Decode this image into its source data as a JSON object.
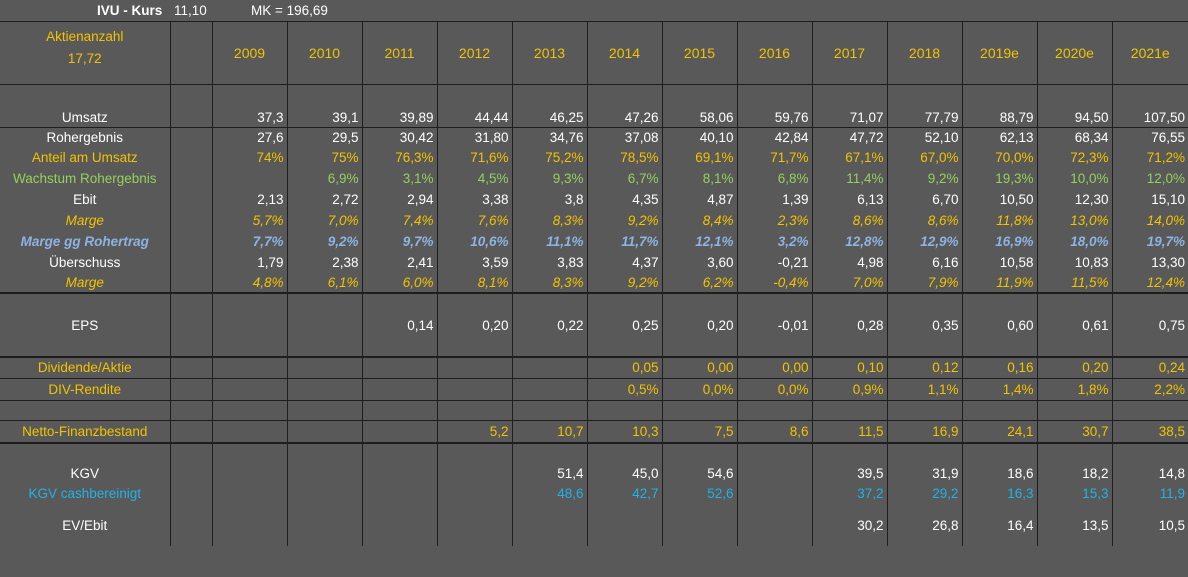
{
  "header": {
    "title": "IVU - Kurs",
    "kurs": "11,10",
    "mk": "MK = 196,69"
  },
  "aktienanzahl": {
    "label": "Aktienanzahl",
    "value": "17,72"
  },
  "years": [
    "2009",
    "2010",
    "2011",
    "2012",
    "2013",
    "2014",
    "2015",
    "2016",
    "2017",
    "2018",
    "2019e",
    "2020e",
    "2021e"
  ],
  "rows": {
    "umsatz": {
      "label": "Umsatz",
      "values": [
        "37,3",
        "39,1",
        "39,89",
        "44,44",
        "46,25",
        "47,26",
        "58,06",
        "59,76",
        "71,07",
        "77,79",
        "88,79",
        "94,50",
        "107,50"
      ]
    },
    "rohergebnis": {
      "label": "Rohergebnis",
      "values": [
        "27,6",
        "29,5",
        "30,42",
        "31,80",
        "34,76",
        "37,08",
        "40,10",
        "42,84",
        "47,72",
        "52,10",
        "62,13",
        "68,34",
        "76,55"
      ]
    },
    "anteil": {
      "label": "Anteil am Umsatz",
      "values": [
        "74%",
        "75%",
        "76,3%",
        "71,6%",
        "75,2%",
        "78,5%",
        "69,1%",
        "71,7%",
        "67,1%",
        "67,0%",
        "70,0%",
        "72,3%",
        "71,2%"
      ]
    },
    "wachstum": {
      "label": "Wachstum Rohergebnis",
      "values": [
        "",
        "6,9%",
        "3,1%",
        "4,5%",
        "9,3%",
        "6,7%",
        "8,1%",
        "6,8%",
        "11,4%",
        "9,2%",
        "19,3%",
        "10,0%",
        "12,0%"
      ]
    },
    "ebit": {
      "label": "Ebit",
      "values": [
        "2,13",
        "2,72",
        "2,94",
        "3,38",
        "3,8",
        "4,35",
        "4,87",
        "1,39",
        "6,13",
        "6,70",
        "10,50",
        "12,30",
        "15,10"
      ]
    },
    "marge1": {
      "label": "Marge",
      "values": [
        "5,7%",
        "7,0%",
        "7,4%",
        "7,6%",
        "8,3%",
        "9,2%",
        "8,4%",
        "2,3%",
        "8,6%",
        "8,6%",
        "11,8%",
        "13,0%",
        "14,0%"
      ]
    },
    "margeroh": {
      "label": "Marge gg Rohertrag",
      "values": [
        "7,7%",
        "9,2%",
        "9,7%",
        "10,6%",
        "11,1%",
        "11,7%",
        "12,1%",
        "3,2%",
        "12,8%",
        "12,9%",
        "16,9%",
        "18,0%",
        "19,7%"
      ]
    },
    "ueberschuss": {
      "label": "Überschuss",
      "values": [
        "1,79",
        "2,38",
        "2,41",
        "3,59",
        "3,83",
        "4,37",
        "3,60",
        "-0,21",
        "4,98",
        "6,16",
        "10,58",
        "10,83",
        "13,30"
      ]
    },
    "marge2": {
      "label": "Marge",
      "values": [
        "4,8%",
        "6,1%",
        "6,0%",
        "8,1%",
        "8,3%",
        "9,2%",
        "6,2%",
        "-0,4%",
        "7,0%",
        "7,9%",
        "11,9%",
        "11,5%",
        "12,4%"
      ]
    },
    "eps": {
      "label": "EPS",
      "values": [
        "",
        "",
        "0,14",
        "0,20",
        "0,22",
        "0,25",
        "0,20",
        "-0,01",
        "0,28",
        "0,35",
        "0,60",
        "0,61",
        "0,75"
      ]
    },
    "dividende": {
      "label": "Dividende/Aktie",
      "values": [
        "",
        "",
        "",
        "",
        "",
        "0,05",
        "0,00",
        "0,00",
        "0,10",
        "0,12",
        "0,16",
        "0,20",
        "0,24"
      ]
    },
    "divrendite": {
      "label": "DIV-Rendite",
      "values": [
        "",
        "",
        "",
        "",
        "",
        "0,5%",
        "0,0%",
        "0,0%",
        "0,9%",
        "1,1%",
        "1,4%",
        "1,8%",
        "2,2%"
      ]
    },
    "netto": {
      "label": "Netto-Finanzbestand",
      "values": [
        "",
        "",
        "",
        "5,2",
        "10,7",
        "10,3",
        "7,5",
        "8,6",
        "11,5",
        "16,9",
        "24,1",
        "30,7",
        "38,5"
      ]
    },
    "kgv": {
      "label": "KGV",
      "values": [
        "",
        "",
        "",
        "",
        "51,4",
        "45,0",
        "54,6",
        "",
        "39,5",
        "31,9",
        "18,6",
        "18,2",
        "14,8"
      ]
    },
    "kgvcash": {
      "label": "KGV cashbereinigt",
      "values": [
        "",
        "",
        "",
        "",
        "48,6",
        "42,7",
        "52,6",
        "",
        "37,2",
        "29,2",
        "16,3",
        "15,3",
        "11,9"
      ]
    },
    "evebit": {
      "label": "EV/Ebit",
      "values": [
        "",
        "",
        "",
        "",
        "",
        "",
        "",
        "",
        "30,2",
        "26,8",
        "16,4",
        "13,5",
        "10,5"
      ]
    }
  },
  "colors": {
    "background": "#595959",
    "yellow": "#f2c300",
    "green": "#93d15a",
    "blue": "#8db3e2",
    "cyan": "#1fb3e8",
    "grid": "#1e1e1e"
  }
}
